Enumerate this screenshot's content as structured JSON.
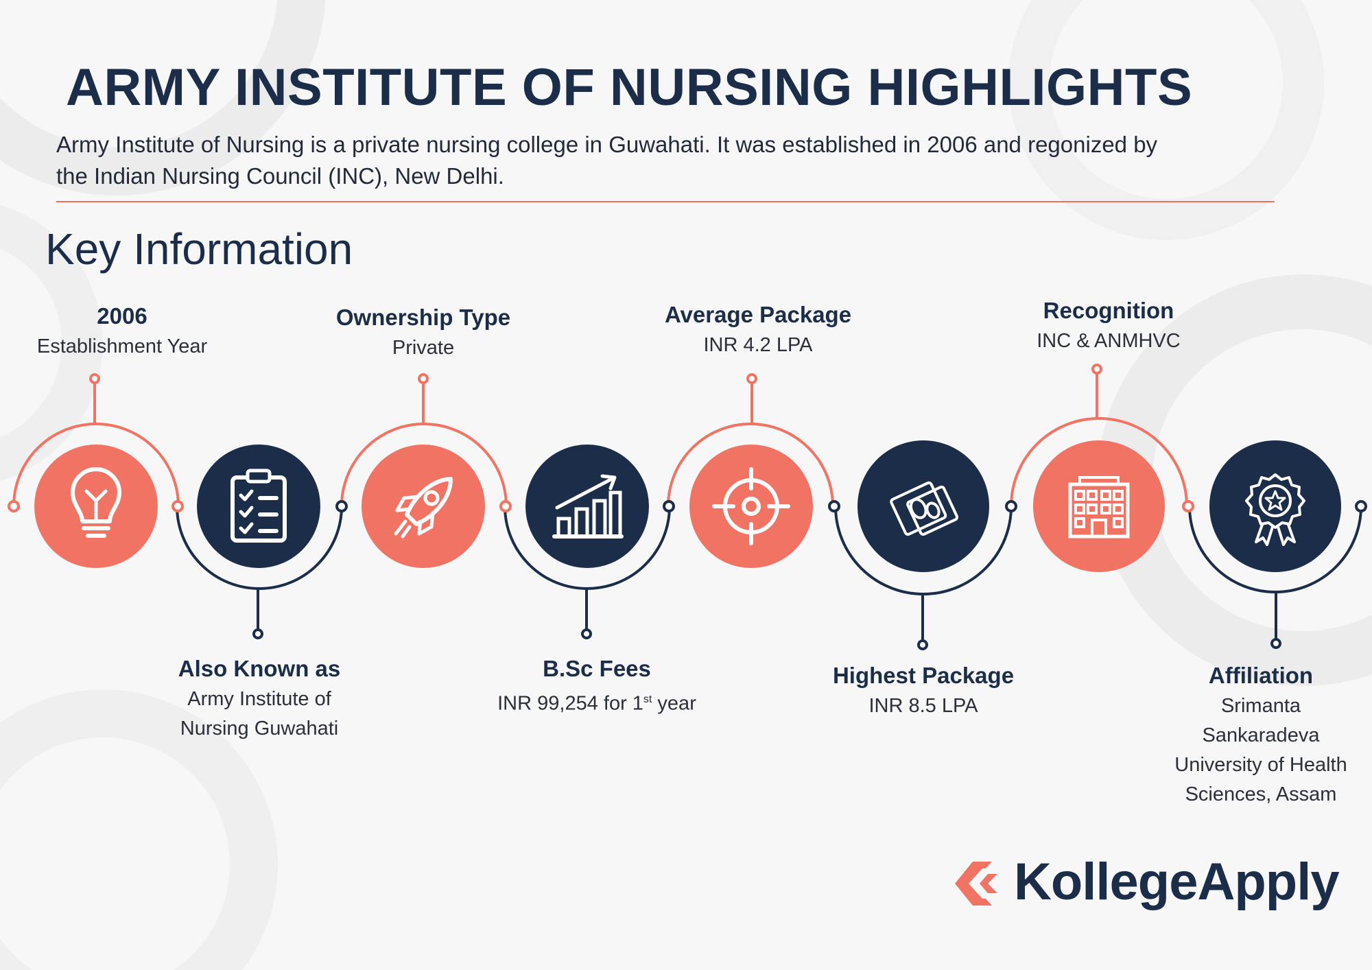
{
  "header": {
    "title": "ARMY INSTITUTE OF NURSING HIGHLIGHTS",
    "description": "Army Institute of Nursing is a private nursing college in Guwahati. It was established in 2006 and regonized by the Indian Nursing Council (INC), New Delhi."
  },
  "section_title": "Key Information",
  "colors": {
    "navy": "#1c2d4a",
    "coral": "#f07363",
    "background": "#f7f7f7"
  },
  "items": [
    {
      "label": "2006",
      "value": "Establishment Year",
      "icon": "lightbulb-icon"
    },
    {
      "label": "Also Known as",
      "value": "Army Institute of Nursing Guwahati",
      "icon": "clipboard-checklist-icon"
    },
    {
      "label": "Ownership Type",
      "value": "Private",
      "icon": "rocket-icon"
    },
    {
      "label": "B.Sc Fees",
      "value_prefix": "INR 99,254 for 1",
      "value_sup": "st",
      "value_suffix": " year",
      "icon": "growth-chart-icon"
    },
    {
      "label": "Average Package",
      "value": "INR 4.2 LPA",
      "icon": "target-icon"
    },
    {
      "label": "Highest Package",
      "value": "INR 8.5 LPA",
      "icon": "money-icon"
    },
    {
      "label": "Recognition",
      "value": "INC & ANMHVC",
      "icon": "building-icon"
    },
    {
      "label": "Affiliation",
      "value": "Srimanta Sankaradeva University of Health Sciences, Assam",
      "icon": "award-badge-icon"
    }
  ],
  "brand": {
    "name": "KollegeApply",
    "logo_icon": "kollegeapply-logo-icon"
  }
}
